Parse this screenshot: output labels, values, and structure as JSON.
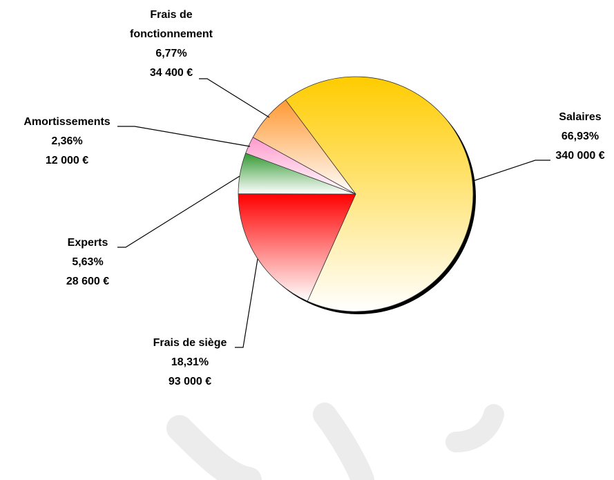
{
  "chart_data": {
    "type": "pie",
    "categories": [
      "Salaires",
      "Frais de siège",
      "Experts",
      "Amortissements",
      "Frais de fonctionnement"
    ],
    "values": [
      340000,
      93000,
      28600,
      12000,
      34400
    ],
    "value_labels": [
      "340 000 €",
      "93 000 €",
      "28 600 €",
      "12 000 €",
      "34 400 €"
    ],
    "percentages": [
      66.93,
      18.31,
      5.63,
      2.36,
      6.77
    ],
    "percentage_labels": [
      "66,93%",
      "18,31%",
      "5,63%",
      "2,36%",
      "6,77%"
    ],
    "colors": [
      "#ffcc00",
      "#ff0000",
      "#339933",
      "#ff99cc",
      "#ff9933"
    ]
  }
}
